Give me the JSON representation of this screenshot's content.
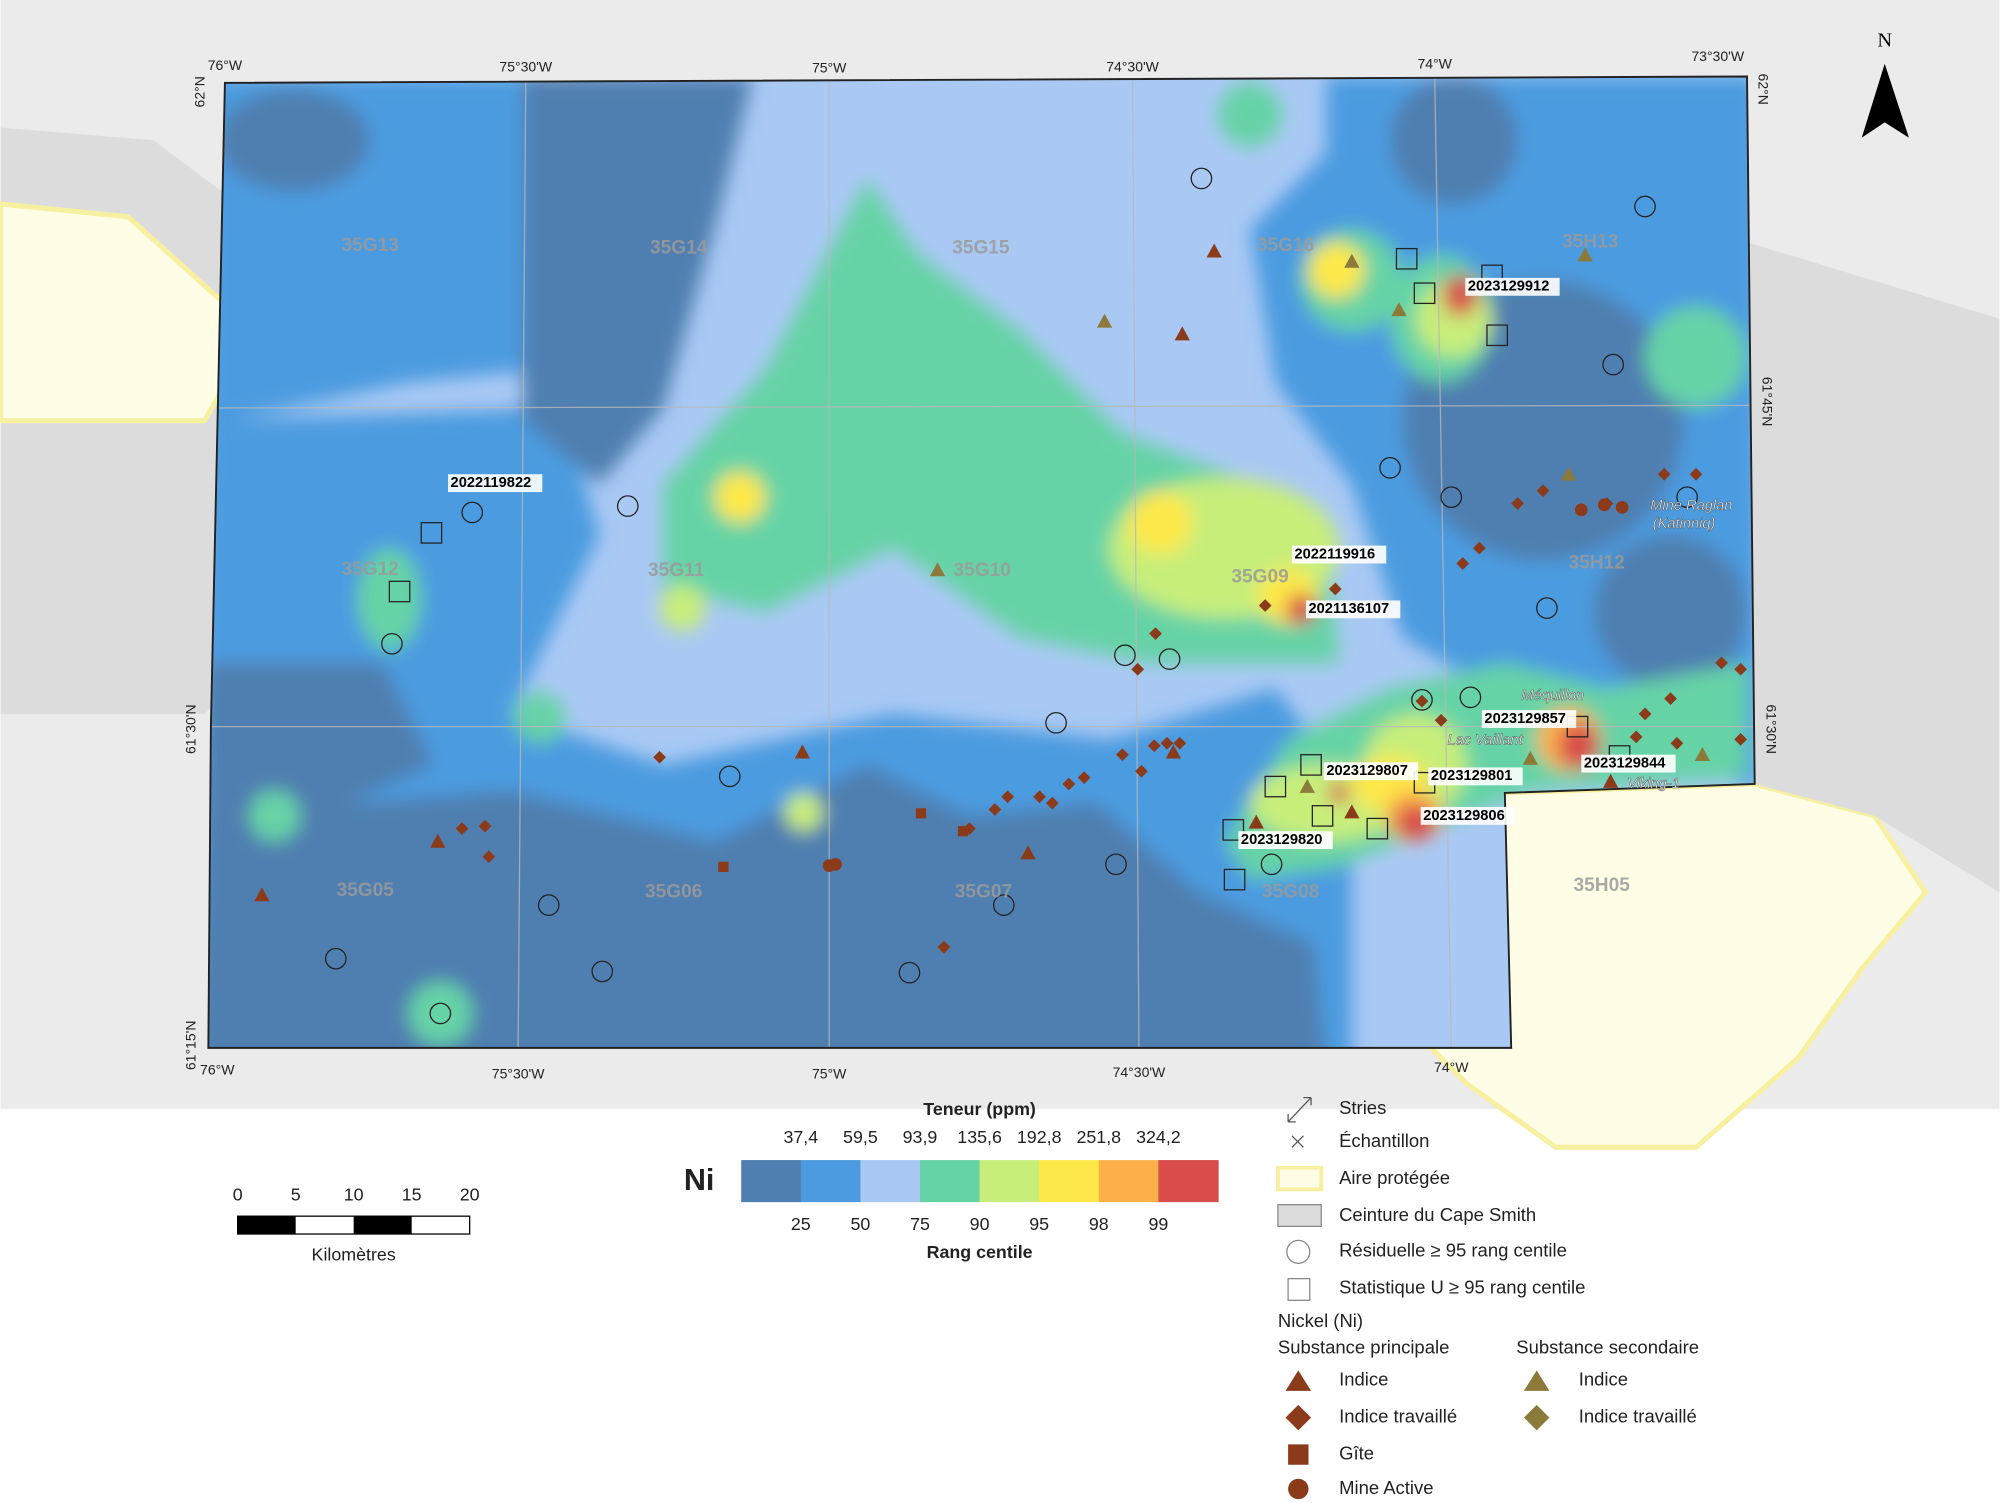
{
  "map": {
    "lon_labels_top": [
      "76°W",
      "75°30'W",
      "75°W",
      "74°30'W",
      "74°W",
      "73°30'W"
    ],
    "lon_labels_bottom": [
      "76°W",
      "75°30'W",
      "75°W",
      "74°30'W",
      "74°W"
    ],
    "lat_labels_left": [
      "62°N",
      "61°30'N",
      "61°15'N"
    ],
    "lat_labels_right": [
      "62°N",
      "61°45'N",
      "61°30'N"
    ],
    "sheets": [
      "35G13",
      "35G14",
      "35G15",
      "35G16",
      "35H13",
      "35G12",
      "35G11",
      "35G10",
      "35G09",
      "35H12",
      "35G05",
      "35G06",
      "35G07",
      "35G08",
      "35H05"
    ],
    "samples": [
      "2023129912",
      "2022119822",
      "2022119916",
      "2021136107",
      "2023129857",
      "2023129807",
      "2023129801",
      "2023129844",
      "2023129806",
      "2023129820"
    ],
    "places": [
      "Mine Raglan",
      "(Katinniq)",
      "Méquillon",
      "Lac Vaillant",
      "Viking-1"
    ],
    "north": "N"
  },
  "colorbar": {
    "title": "Teneur (ppm)",
    "element": "Ni",
    "ppm_labels": [
      "37,4",
      "59,5",
      "93,9",
      "135,6",
      "192,8",
      "251,8",
      "324,2"
    ],
    "percentile_labels": [
      "25",
      "50",
      "75",
      "90",
      "95",
      "98",
      "99"
    ],
    "subtitle": "Rang centile",
    "colors": [
      "#4f7fb0",
      "#4c9be0",
      "#a9c9f4",
      "#66d3a6",
      "#c8ee7a",
      "#fde84a",
      "#fbb04a",
      "#d94c4c"
    ]
  },
  "scale_bar": {
    "labels": [
      "0",
      "5",
      "10",
      "15",
      "20"
    ],
    "unit": "Kilomètres"
  },
  "legend": {
    "items": [
      "Stries",
      "Échantillon",
      "Aire protégée",
      "Ceinture du Cape Smith",
      "Résiduelle ≥ 95 rang centile",
      "Statistique U ≥ 95 rang centile"
    ],
    "group_title": "Nickel (Ni)",
    "primary_title": "Substance principale",
    "primary_items": [
      "Indice",
      "Indice travaillé",
      "Gîte",
      "Mine Active"
    ],
    "secondary_title": "Substance secondaire",
    "secondary_items": [
      "Indice",
      "Indice travaillé"
    ]
  }
}
